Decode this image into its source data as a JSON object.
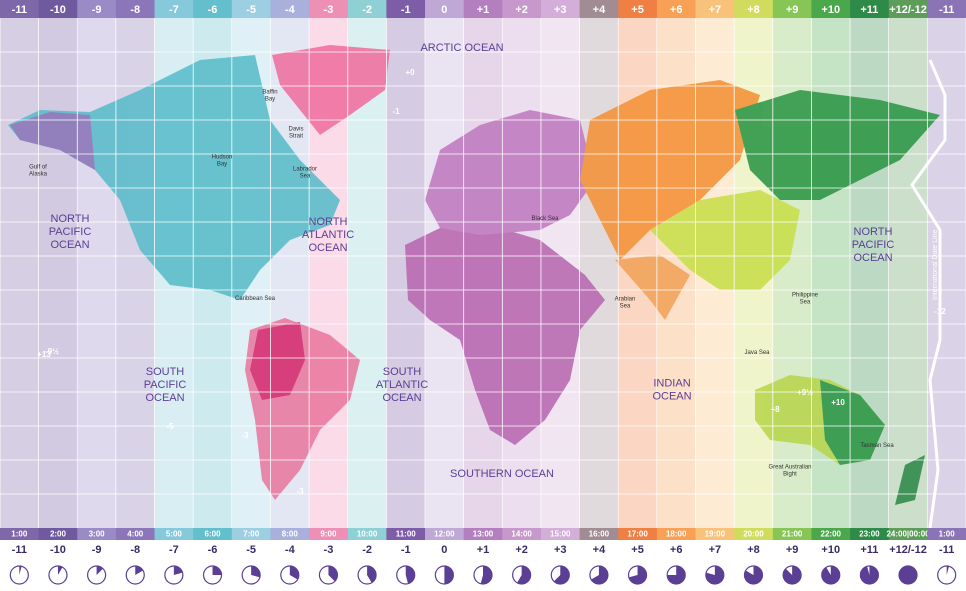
{
  "zones": [
    {
      "offset": "-11",
      "time": "1:00",
      "color": "#7f68a9"
    },
    {
      "offset": "-10",
      "time": "2:00",
      "color": "#6f5aa0"
    },
    {
      "offset": "-9",
      "time": "3:00",
      "color": "#9a8ac6"
    },
    {
      "offset": "-8",
      "time": "4:00",
      "color": "#8a76b8"
    },
    {
      "offset": "-7",
      "time": "5:00",
      "color": "#86c9da"
    },
    {
      "offset": "-6",
      "time": "6:00",
      "color": "#63bfcc"
    },
    {
      "offset": "-5",
      "time": "7:00",
      "color": "#9ccfe2"
    },
    {
      "offset": "-4",
      "time": "8:00",
      "color": "#a9b0db"
    },
    {
      "offset": "-3",
      "time": "9:00",
      "color": "#ee8fb5"
    },
    {
      "offset": "-2",
      "time": "10:00",
      "color": "#8fd0d4"
    },
    {
      "offset": "-1",
      "time": "11:00",
      "color": "#7d5ca8"
    },
    {
      "offset": "0",
      "time": "12:00",
      "color": "#bfa8d6"
    },
    {
      "offset": "+1",
      "time": "13:00",
      "color": "#b37fbf"
    },
    {
      "offset": "+2",
      "time": "14:00",
      "color": "#c698cc"
    },
    {
      "offset": "+3",
      "time": "15:00",
      "color": "#d2aed8"
    },
    {
      "offset": "+4",
      "time": "16:00",
      "color": "#a08c92"
    },
    {
      "offset": "+5",
      "time": "17:00",
      "color": "#f07f44"
    },
    {
      "offset": "+6",
      "time": "18:00",
      "color": "#f8a055"
    },
    {
      "offset": "+7",
      "time": "19:00",
      "color": "#f9c27a"
    },
    {
      "offset": "+8",
      "time": "20:00",
      "color": "#cfdc5e"
    },
    {
      "offset": "+9",
      "time": "21:00",
      "color": "#86c556"
    },
    {
      "offset": "+10",
      "time": "22:00",
      "color": "#4aa84b"
    },
    {
      "offset": "+11",
      "time": "23:00",
      "color": "#2e8a47"
    },
    {
      "offset": "+12/-12",
      "time": "24:00|00:00",
      "color": "#5d9d59"
    },
    {
      "offset": "-11",
      "time": "1:00",
      "color": "#8b74b5"
    }
  ],
  "map": {
    "labels": [
      {
        "lines": [
          "ARCTIC OCEAN"
        ]
      },
      {
        "lines": [
          "NORTH",
          "PACIFIC",
          "OCEAN"
        ]
      },
      {
        "lines": [
          "NORTH",
          "ATLANTIC",
          "OCEAN"
        ]
      },
      {
        "lines": [
          "SOUTH",
          "PACIFIC",
          "OCEAN"
        ]
      },
      {
        "lines": [
          "SOUTH",
          "ATLANTIC",
          "OCEAN"
        ]
      },
      {
        "lines": [
          "INDIAN",
          "OCEAN"
        ]
      },
      {
        "lines": [
          "SOUTHERN OCEAN"
        ]
      },
      {
        "lines": [
          "NORTH",
          "PACIFIC",
          "OCEAN"
        ]
      },
      {
        "lines": [
          "Gulf of",
          "Alaska"
        ]
      },
      {
        "lines": [
          "Caribbean Sea"
        ]
      },
      {
        "lines": [
          "Arabian",
          "Sea"
        ]
      },
      {
        "lines": [
          "Tasman Sea"
        ]
      },
      {
        "lines": [
          "Philippine",
          "Sea"
        ]
      },
      {
        "lines": [
          "Java Sea"
        ]
      },
      {
        "lines": [
          "Labrador",
          "Sea"
        ]
      },
      {
        "lines": [
          "Hudson",
          "Bay"
        ]
      },
      {
        "lines": [
          "Baffin",
          "Bay"
        ]
      },
      {
        "lines": [
          "Davis",
          "Strait"
        ]
      },
      {
        "lines": [
          "Black Sea"
        ]
      },
      {
        "lines": [
          "Great Australian",
          "Bight"
        ]
      }
    ],
    "zone_marks": [
      "+0",
      "-1",
      "-3",
      "-5",
      "-3",
      "+8",
      "+10",
      "+9½",
      "-9½",
      "+13",
      "-12"
    ],
    "date_line": "International Date Line"
  }
}
